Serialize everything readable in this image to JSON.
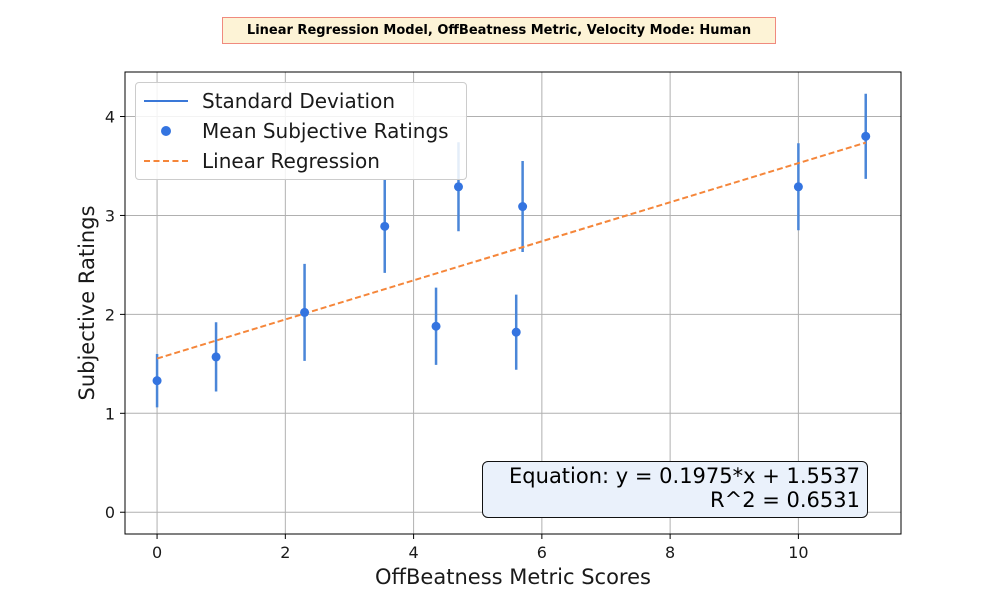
{
  "title": "Linear Regression Model, OffBeatness Metric, Velocity Mode: Human",
  "chart_data": {
    "type": "scatter",
    "xlabel": "OffBeatness Metric Scores",
    "ylabel": "Subjective Ratings",
    "xlim": [
      -0.5,
      11.6
    ],
    "ylim": [
      -0.22,
      4.45
    ],
    "xticks": [
      0,
      2,
      4,
      6,
      8,
      10
    ],
    "yticks": [
      0,
      1,
      2,
      3,
      4
    ],
    "grid": true,
    "legend_position": "upper-left",
    "series": [
      {
        "name": "Mean Subjective Ratings",
        "color": "#3474e0",
        "points": [
          {
            "x": 0.0,
            "y": 1.33,
            "sd": 0.27
          },
          {
            "x": 0.92,
            "y": 1.57,
            "sd": 0.35
          },
          {
            "x": 2.3,
            "y": 2.02,
            "sd": 0.49
          },
          {
            "x": 3.55,
            "y": 2.89,
            "sd": 0.47
          },
          {
            "x": 4.35,
            "y": 1.88,
            "sd": 0.39
          },
          {
            "x": 4.7,
            "y": 3.29,
            "sd": 0.45
          },
          {
            "x": 5.6,
            "y": 1.82,
            "sd": 0.38
          },
          {
            "x": 5.7,
            "y": 3.09,
            "sd": 0.46
          },
          {
            "x": 10.0,
            "y": 3.29,
            "sd": 0.44
          },
          {
            "x": 11.05,
            "y": 3.8,
            "sd": 0.43
          }
        ]
      }
    ],
    "error_bar_label": "Standard Deviation",
    "error_bar_color": "#4a86d8",
    "regression": {
      "name": "Linear Regression",
      "slope": 0.1975,
      "intercept": 1.5537,
      "x_range": [
        0.0,
        11.05
      ],
      "color": "#f5863a"
    },
    "annotation": {
      "equation": "Equation: y = 0.1975*x + 1.5537",
      "r2": "R^2 = 0.6531"
    }
  }
}
